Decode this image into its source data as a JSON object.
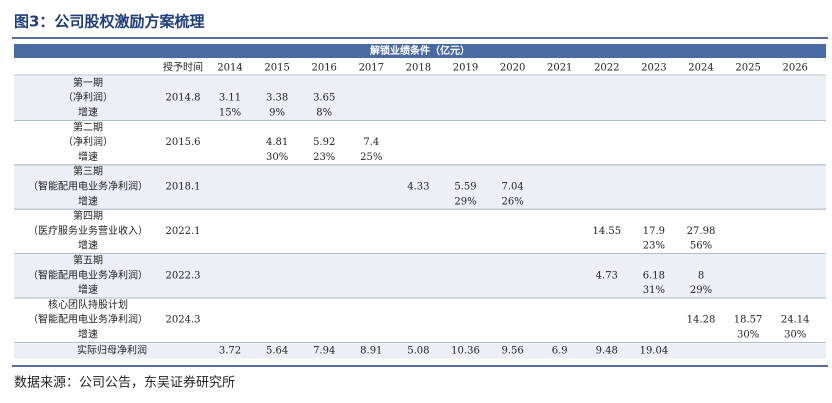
{
  "title": "图3：公司股权激励方案梳理",
  "table": {
    "header_title": "解锁业绩条件（亿元）",
    "grant_label": "授予时间",
    "years": [
      "2014",
      "2015",
      "2016",
      "2017",
      "2018",
      "2019",
      "2020",
      "2021",
      "2022",
      "2023",
      "2024",
      "2025",
      "2026"
    ],
    "groups": [
      {
        "name": "第一期",
        "subtitle": "（净利润）",
        "grant": "2014.8",
        "growth_label": "增速",
        "values": [
          3.11,
          3.38,
          3.65,
          null,
          null,
          null,
          null,
          null,
          null,
          null,
          null,
          null,
          null
        ],
        "growth": [
          "15%",
          "9%",
          "8%",
          null,
          null,
          null,
          null,
          null,
          null,
          null,
          null,
          null,
          null
        ]
      },
      {
        "name": "第二期",
        "subtitle": "（净利润）",
        "grant": "2015.6",
        "growth_label": "增速",
        "values": [
          null,
          4.81,
          5.92,
          7.4,
          null,
          null,
          null,
          null,
          null,
          null,
          null,
          null,
          null
        ],
        "growth": [
          null,
          "30%",
          "23%",
          "25%",
          null,
          null,
          null,
          null,
          null,
          null,
          null,
          null,
          null
        ]
      },
      {
        "name": "第三期",
        "subtitle": "（智能配用电业务净利润）",
        "grant": "2018.1",
        "growth_label": "增速",
        "values": [
          null,
          null,
          null,
          null,
          4.33,
          5.59,
          7.04,
          null,
          null,
          null,
          null,
          null,
          null
        ],
        "growth": [
          null,
          null,
          null,
          null,
          null,
          "29%",
          "26%",
          null,
          null,
          null,
          null,
          null,
          null
        ]
      },
      {
        "name": "第四期",
        "subtitle": "（医疗服务业务营业收入）",
        "grant": "2022.1",
        "growth_label": "增速",
        "values": [
          null,
          null,
          null,
          null,
          null,
          null,
          null,
          null,
          14.55,
          17.9,
          27.98,
          null,
          null
        ],
        "growth": [
          null,
          null,
          null,
          null,
          null,
          null,
          null,
          null,
          null,
          "23%",
          "56%",
          null,
          null
        ]
      },
      {
        "name": "第五期",
        "subtitle": "（智能配用电业务净利润）",
        "grant": "2022.3",
        "growth_label": "增速",
        "values": [
          null,
          null,
          null,
          null,
          null,
          null,
          null,
          null,
          4.73,
          6.18,
          8,
          null,
          null
        ],
        "growth": [
          null,
          null,
          null,
          null,
          null,
          null,
          null,
          null,
          null,
          "31%",
          "29%",
          null,
          null
        ]
      },
      {
        "name": "核心团队持股计划",
        "subtitle": "（智能配用电业务净利润）",
        "grant": "2024.3",
        "growth_label": "增速",
        "values": [
          null,
          null,
          null,
          null,
          null,
          null,
          null,
          null,
          null,
          null,
          14.28,
          18.57,
          24.14
        ],
        "growth": [
          null,
          null,
          null,
          null,
          null,
          null,
          null,
          null,
          null,
          null,
          null,
          "30%",
          "30%"
        ]
      }
    ],
    "actual": {
      "label": "实际归母净利润",
      "values": [
        3.72,
        5.64,
        7.94,
        8.91,
        5.08,
        10.36,
        9.56,
        6.9,
        9.48,
        19.04,
        null,
        null,
        null
      ]
    }
  },
  "source": "数据来源：公司公告，东吴证券研究所"
}
